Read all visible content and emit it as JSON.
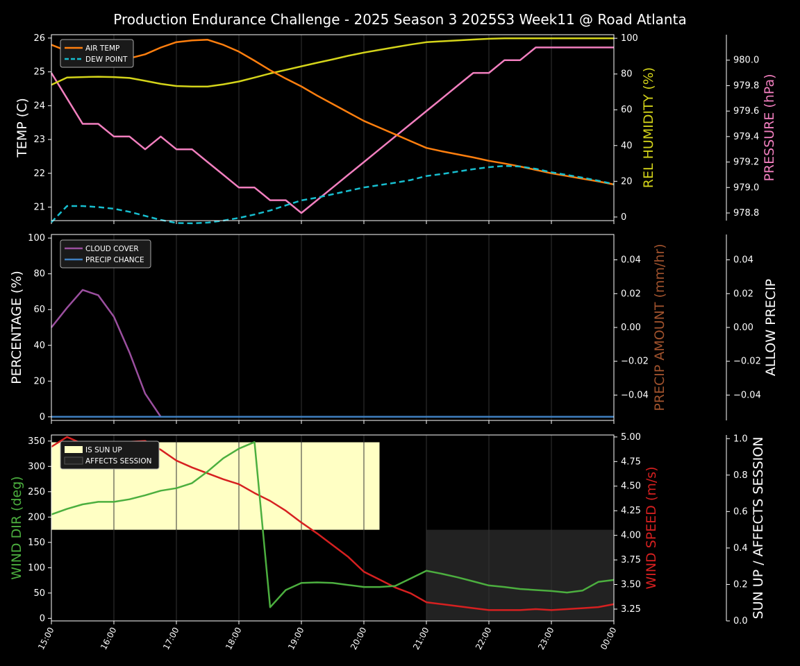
{
  "title": "Production Endurance Challenge - 2025 Season 3 2025S3 Week11 @ Road Atlanta",
  "colors": {
    "air_temp": "#ff7f0e",
    "dew_point": "#17becf",
    "humidity": "#d4d41a",
    "pressure": "#f27fbf",
    "cloud": "#9b4f9f",
    "precip_chance": "#3f7fbf",
    "precip_amount": "#a0522d",
    "wind_dir": "#4caf3f",
    "wind_speed": "#d62020",
    "sun_up": "#ffffc4",
    "affects_session": "#222222"
  },
  "x_ticks": [
    "15:00",
    "16:00",
    "17:00",
    "18:00",
    "19:00",
    "20:00",
    "21:00",
    "22:00",
    "23:00",
    "00:00"
  ],
  "chart_data": [
    {
      "type": "line",
      "x": [
        15,
        15.25,
        15.5,
        15.75,
        16,
        16.25,
        16.5,
        16.75,
        17,
        17.25,
        17.5,
        17.75,
        18,
        18.25,
        18.5,
        18.75,
        19,
        19.25,
        19.5,
        19.75,
        20,
        20.25,
        20.5,
        20.75,
        21,
        21.25,
        21.5,
        21.75,
        22,
        22.25,
        22.5,
        22.75,
        23,
        23.25,
        23.5,
        23.75,
        24
      ],
      "ylabel_left": "TEMP (C)",
      "ylabel_right": "REL HUMIDITY (%)",
      "ylabel_far": "PRESSURE (hPa)",
      "ylim_left": [
        20.6,
        26.1
      ],
      "ylim_right": [
        -2,
        102
      ],
      "ylim_far": [
        978.74,
        980.2
      ],
      "yticks_left": [
        "21",
        "22",
        "23",
        "24",
        "25",
        "26"
      ],
      "yticks_right": [
        "0",
        "20",
        "40",
        "60",
        "80",
        "100"
      ],
      "yticks_far": [
        "978.8",
        "979.0",
        "979.2",
        "979.4",
        "979.6",
        "979.8",
        "980.0"
      ],
      "legend": [
        "AIR TEMP",
        "DEW POINT"
      ],
      "series": [
        {
          "name": "AIR TEMP",
          "axis": "left",
          "values": [
            25.8,
            25.62,
            25.45,
            25.4,
            25.37,
            25.4,
            25.52,
            25.72,
            25.88,
            25.93,
            25.95,
            25.8,
            25.6,
            25.33,
            25.05,
            24.8,
            24.57,
            24.3,
            24.05,
            23.8,
            23.55,
            23.35,
            23.15,
            22.95,
            22.75,
            22.65,
            22.56,
            22.47,
            22.37,
            22.29,
            22.2,
            22.1,
            22.0,
            21.92,
            21.84,
            21.76,
            21.67
          ]
        },
        {
          "name": "DEW POINT",
          "axis": "left",
          "values": [
            20.55,
            21.03,
            21.03,
            21.0,
            20.95,
            20.86,
            20.74,
            20.62,
            20.53,
            20.52,
            20.54,
            20.6,
            20.68,
            20.78,
            20.9,
            21.05,
            21.2,
            21.28,
            21.38,
            21.48,
            21.58,
            21.65,
            21.72,
            21.8,
            21.92,
            21.98,
            22.05,
            22.12,
            22.18,
            22.22,
            22.2,
            22.13,
            22.03,
            21.95,
            21.87,
            21.78,
            21.68
          ]
        },
        {
          "name": "REL HUMIDITY",
          "axis": "right",
          "values": [
            74,
            78,
            78.3,
            78.5,
            78.3,
            77.8,
            76.2,
            74.5,
            73.3,
            73,
            73,
            74.2,
            75.8,
            78,
            80.3,
            82.3,
            84.3,
            86.3,
            88.2,
            90.2,
            92,
            93.5,
            95,
            96.5,
            97.8,
            98.3,
            98.8,
            99.3,
            99.7,
            100,
            100,
            100,
            100,
            100,
            100,
            100,
            100
          ]
        },
        {
          "name": "PRESSURE",
          "axis": "far",
          "values": [
            979.9,
            979.7,
            979.5,
            979.5,
            979.4,
            979.4,
            979.3,
            979.4,
            979.3,
            979.3,
            979.2,
            979.1,
            979.0,
            979.0,
            978.9,
            978.9,
            978.8,
            978.9,
            979.0,
            979.1,
            979.2,
            979.3,
            979.4,
            979.5,
            979.6,
            979.7,
            979.8,
            979.9,
            979.9,
            980.0,
            980.0,
            980.1,
            980.1,
            980.1,
            980.1,
            980.1,
            980.1
          ]
        }
      ]
    },
    {
      "type": "line",
      "ylabel_left": "PERCENTAGE (%)",
      "ylabel_right": "PRECIP AMOUNT (mm/hr)",
      "ylabel_far": "ALLOW PRECIP",
      "ylim_left": [
        -2,
        102
      ],
      "ylim_right": [
        -0.055,
        0.055
      ],
      "yticks_left": [
        "0",
        "20",
        "40",
        "60",
        "80",
        "100"
      ],
      "yticks_right": [
        "−0.04",
        "−0.02",
        "0.00",
        "0.02",
        "0.04"
      ],
      "yticks_far": [
        "−0.04",
        "−0.02",
        "0.00",
        "0.02",
        "0.04"
      ],
      "legend": [
        "CLOUD COVER",
        "PRECIP CHANCE"
      ],
      "series": [
        {
          "name": "CLOUD COVER",
          "x": [
            15,
            15.25,
            15.5,
            15.75,
            16,
            16.25,
            16.5,
            16.75,
            17,
            24
          ],
          "values": [
            50,
            61,
            71,
            68,
            56,
            36,
            13,
            0,
            0,
            0
          ]
        },
        {
          "name": "PRECIP CHANCE",
          "x": [
            15,
            24
          ],
          "values": [
            0,
            0
          ]
        }
      ]
    },
    {
      "type": "line",
      "ylabel_left": "WIND DIR (deg)",
      "ylabel_right": "WIND SPEED (m/s)",
      "ylabel_far": "SUN UP / AFFECTS SESSION",
      "ylim_left": [
        -5,
        362
      ],
      "ylim_right": [
        3.13,
        5.02
      ],
      "ylim_far": [
        0,
        1.02
      ],
      "yticks_left": [
        "0",
        "50",
        "100",
        "150",
        "200",
        "250",
        "300",
        "350"
      ],
      "yticks_right": [
        "3.25",
        "3.50",
        "3.75",
        "4.00",
        "4.25",
        "4.50",
        "4.75",
        "5.00"
      ],
      "yticks_far": [
        "0.0",
        "0.2",
        "0.4",
        "0.6",
        "0.8",
        "1.0"
      ],
      "legend": [
        "IS SUN UP",
        "AFFECTS SESSION"
      ],
      "sun_up": {
        "from": 15,
        "to": 20.25,
        "level": 0.98
      },
      "affects_session": {
        "from": 21,
        "to": 24,
        "level": 0.5
      },
      "series": [
        {
          "name": "WIND DIR",
          "x": [
            15,
            15.25,
            15.5,
            15.75,
            16,
            16.25,
            16.5,
            16.75,
            17,
            17.25,
            17.5,
            17.75,
            18,
            18.25,
            18.5,
            18.75,
            19,
            19.25,
            19.5,
            19.75,
            20,
            20.25,
            20.5,
            20.75,
            21,
            21.25,
            21.5,
            21.75,
            22,
            22.25,
            22.5,
            22.75,
            23,
            23.25,
            23.5,
            23.75,
            24
          ],
          "values": [
            205,
            216,
            225,
            230,
            230,
            235,
            243,
            252,
            257,
            267,
            290,
            316,
            335,
            348,
            22,
            56,
            70,
            71,
            70,
            66,
            62,
            62,
            64,
            79,
            94,
            88,
            81,
            73,
            65,
            62,
            58,
            56,
            54,
            51,
            55,
            72,
            76
          ]
        },
        {
          "name": "WIND SPEED",
          "x": [
            15,
            15.25,
            15.5,
            15.75,
            16,
            16.25,
            16.5,
            16.75,
            17,
            17.25,
            17.5,
            17.75,
            18,
            18.25,
            18.5,
            18.75,
            19,
            19.25,
            19.5,
            19.75,
            20,
            20.25,
            20.5,
            20.75,
            21,
            21.25,
            21.5,
            21.75,
            22,
            22.25,
            22.5,
            22.75,
            23,
            23.25,
            23.5,
            23.75,
            24
          ],
          "values": [
            4.9,
            5.0,
            4.93,
            4.95,
            4.95,
            4.95,
            4.96,
            4.87,
            4.76,
            4.69,
            4.63,
            4.57,
            4.52,
            4.43,
            4.35,
            4.25,
            4.13,
            4.02,
            3.9,
            3.78,
            3.63,
            3.55,
            3.47,
            3.41,
            3.32,
            3.3,
            3.28,
            3.26,
            3.24,
            3.24,
            3.24,
            3.25,
            3.24,
            3.25,
            3.26,
            3.27,
            3.3
          ]
        }
      ]
    }
  ]
}
